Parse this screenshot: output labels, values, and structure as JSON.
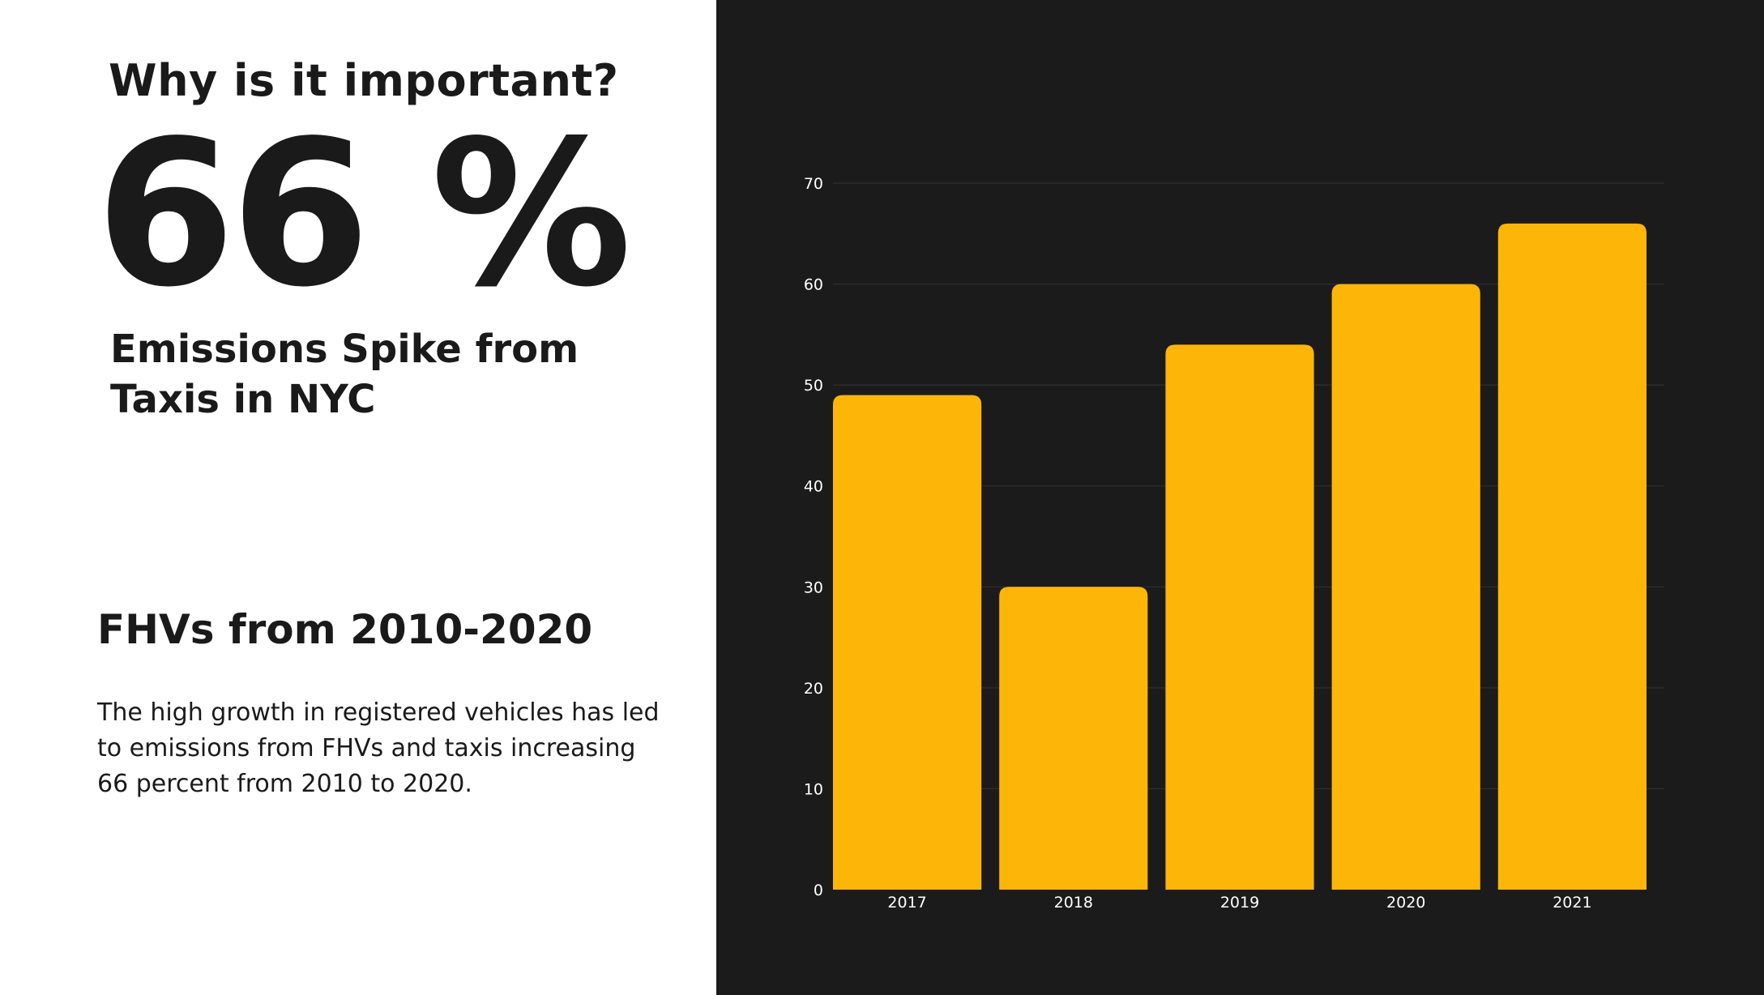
{
  "left_panel": {
    "heading": "Why is it important?",
    "big_stat": "66 %",
    "subhead": "Emissions Spike from Taxis in NYC",
    "section_title": "FHVs from 2010-2020",
    "body": "The high growth in registered vehicles has led to emissions from FHVs and taxis increasing 66 percent from 2010 to 2020."
  },
  "colors": {
    "bar": "#FDB608",
    "panel_background": "#1b1b1b",
    "text_dark": "#1a1a1a",
    "tick_text": "#ffffff",
    "grid": "#333333"
  },
  "chart_data": {
    "type": "bar",
    "title": "",
    "xlabel": "",
    "ylabel": "",
    "categories": [
      "2017",
      "2018",
      "2019",
      "2020",
      "2021"
    ],
    "values": [
      49,
      30,
      54,
      60,
      66
    ],
    "ylim": [
      0,
      70
    ],
    "yticks": [
      0,
      10,
      20,
      30,
      40,
      50,
      60,
      70
    ],
    "grid": true,
    "legend": "none"
  }
}
